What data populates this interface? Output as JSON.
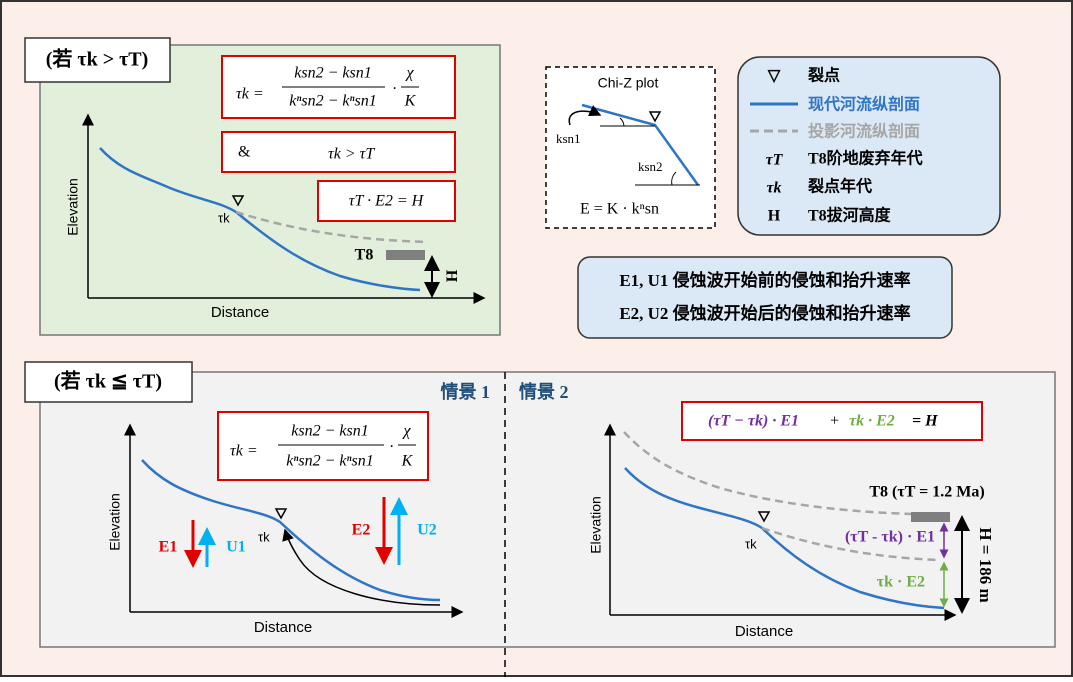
{
  "panel_a": {
    "condition": "(若 τk > τT)",
    "formula": {
      "lhs": "τk =",
      "numerator": "ksn2 − ksn1",
      "denominator": "kⁿsn2 − kⁿsn1",
      "factor_numerator": "χ",
      "factor_denominator": "K",
      "dot": "·"
    },
    "criterion": {
      "and": "&",
      "inequality": "τk > τT"
    },
    "product": "τT · E2 = H",
    "y_label": "Elevation",
    "x_label": "Distance",
    "knickpoint": "τk",
    "terrace": "T8",
    "height": "H"
  },
  "chi_plot": {
    "title": "Chi-Z plot",
    "slope1": "ksn1",
    "slope2": "ksn2",
    "equation": "E = K ·  kⁿsn"
  },
  "legend": [
    {
      "symbol": "▽",
      "label": "裂点"
    },
    {
      "label": "现代河流纵剖面"
    },
    {
      "label": "投影河流纵剖面"
    },
    {
      "symbol": "τT",
      "label": "T8阶地废弃年代"
    },
    {
      "symbol": "τk",
      "label": "裂点年代"
    },
    {
      "symbol": "H",
      "label": "T8拔河高度"
    }
  ],
  "rates": [
    "E1, U1 侵蚀波开始前的侵蚀和抬升速率",
    "E2, U2 侵蚀波开始后的侵蚀和抬升速率"
  ],
  "panel_b": {
    "condition": "(若 τk ≦ τT)",
    "scenario_1": {
      "title": "情景 1",
      "formula": {
        "lhs": "τk =",
        "numerator": "ksn2 − ksn1",
        "denominator": "kⁿsn2 − kⁿsn1",
        "factor_numerator": "χ",
        "factor_denominator": "K",
        "dot": "·"
      },
      "y_label": "Elevation",
      "x_label": "Distance",
      "knickpoint": "τk",
      "e1": "E1",
      "u1": "U1",
      "e2": "E2",
      "u2": "U2"
    },
    "scenario_2": {
      "title": "情景 2",
      "formula": {
        "part1": "(τT − τk) · E1",
        "plus": "+",
        "part2": "τk · E2",
        "rhs": "= H"
      },
      "terrace": "T8 (τT = 1.2 Ma)",
      "segment_1": "(τT - τk) · E1",
      "segment_2": "τk · E2",
      "height": "H = 186 m",
      "y_label": "Elevation",
      "x_label": "Distance",
      "knickpoint": "τk"
    }
  }
}
